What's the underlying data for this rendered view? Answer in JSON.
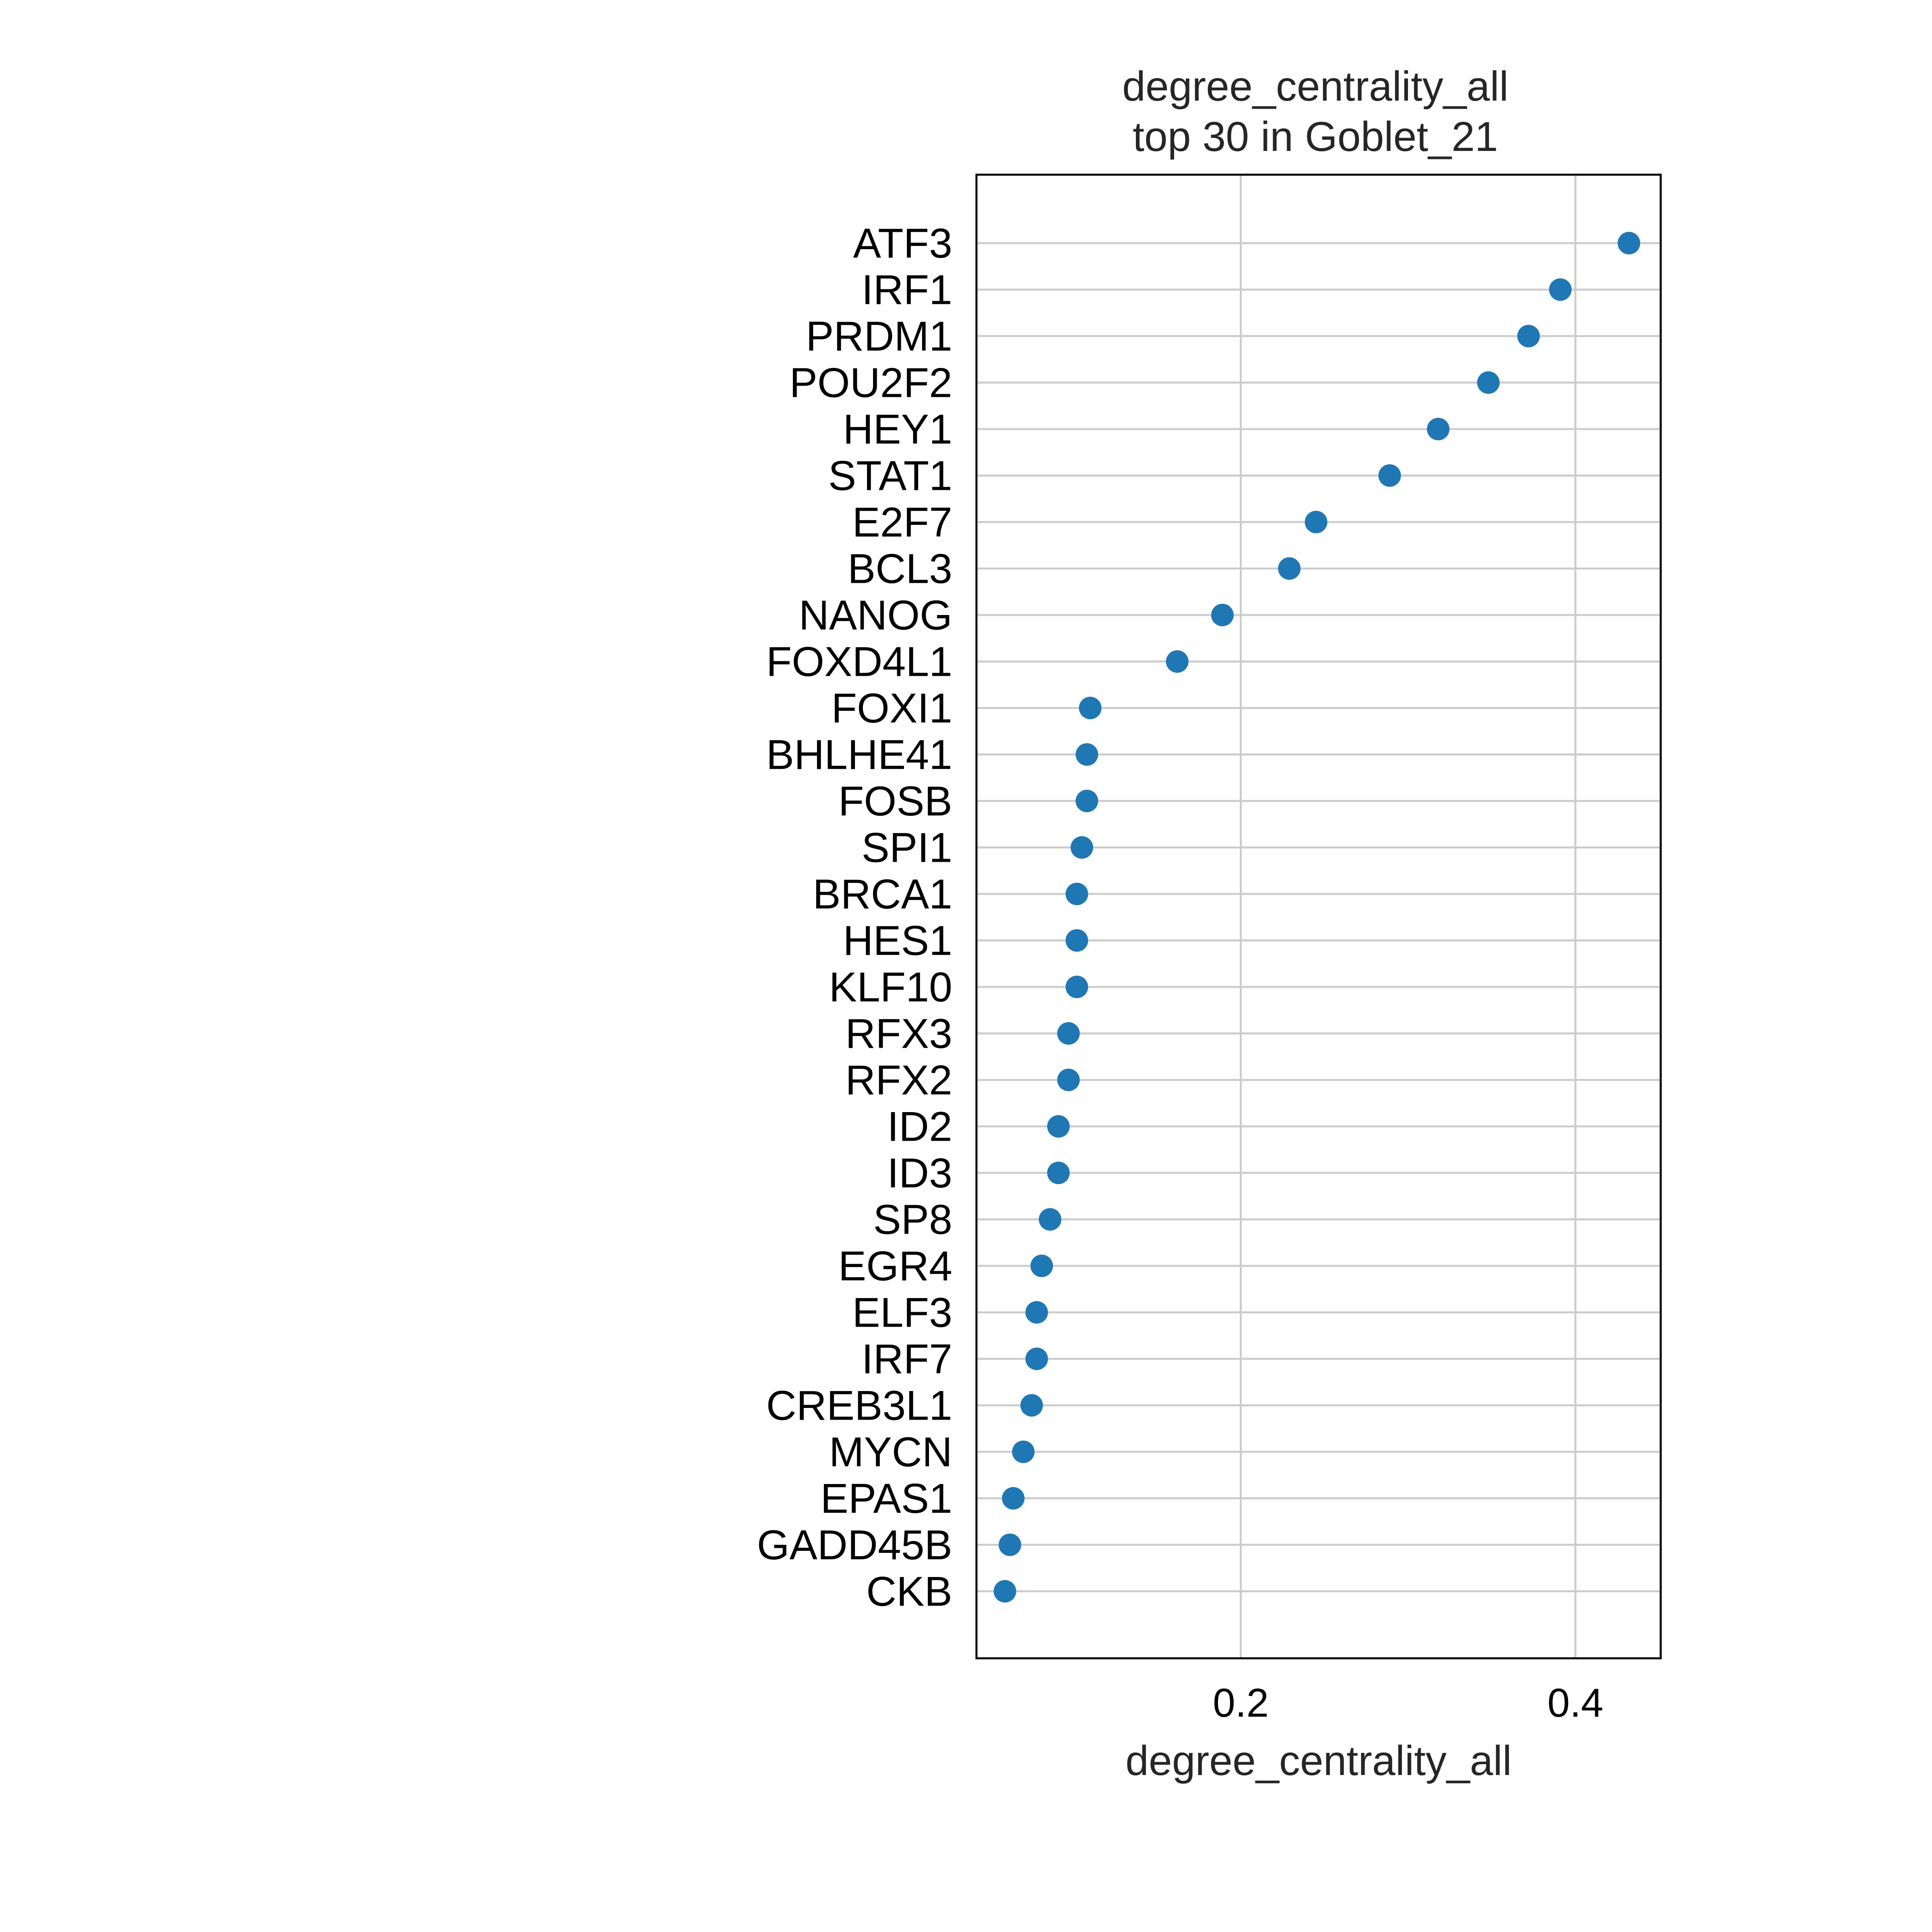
{
  "chart_data": {
    "type": "scatter",
    "title_line1": "degree_centrality_all",
    "title_line2": "top 30 in Goblet_21",
    "xlabel": "degree_centrality_all",
    "ylabel": "",
    "xlim": [
      0.042,
      0.451
    ],
    "xticks": [
      0.2,
      0.4
    ],
    "xtick_labels": [
      "0.2",
      "0.4"
    ],
    "grid": true,
    "marker_color": "#1f77b4",
    "categories": [
      "ATF3",
      "IRF1",
      "PRDM1",
      "POU2F2",
      "HEY1",
      "STAT1",
      "E2F7",
      "BCL3",
      "NANOG",
      "FOXD4L1",
      "FOXI1",
      "BHLHE41",
      "FOSB",
      "SPI1",
      "BRCA1",
      "HES1",
      "KLF10",
      "RFX3",
      "RFX2",
      "ID2",
      "ID3",
      "SP8",
      "EGR4",
      "ELF3",
      "IRF7",
      "CREB3L1",
      "MYCN",
      "EPAS1",
      "GADD45B",
      "CKB"
    ],
    "values": [
      0.432,
      0.391,
      0.372,
      0.348,
      0.318,
      0.289,
      0.245,
      0.229,
      0.189,
      0.162,
      0.11,
      0.108,
      0.108,
      0.105,
      0.102,
      0.102,
      0.102,
      0.097,
      0.097,
      0.091,
      0.091,
      0.086,
      0.081,
      0.078,
      0.078,
      0.075,
      0.07,
      0.064,
      0.062,
      0.059
    ]
  }
}
